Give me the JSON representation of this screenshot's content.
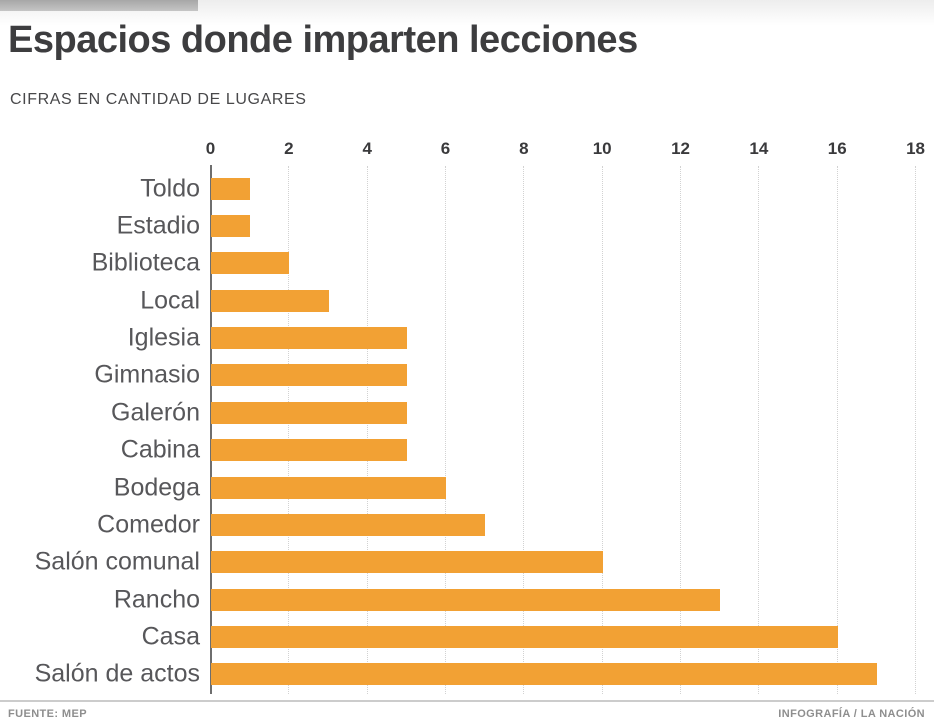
{
  "page": {
    "title": "Espacios donde imparten lecciones",
    "subtitle": "CIFRAS EN CANTIDAD DE LUGARES"
  },
  "footer": {
    "source": "FUENTE: MEP",
    "credit": "INFOGRAFÍA / LA NACIÓN"
  },
  "colors": {
    "bar": "#f2a134",
    "title_text": "#3d3d3f",
    "category_text": "#57575a",
    "axis_line": "#6e6e6e",
    "gridline": "#d2d2d2",
    "footer_text": "#8e8e8e",
    "top_strip": "#a7a7a7"
  },
  "chart_data": {
    "type": "bar",
    "orientation": "horizontal",
    "title": "Espacios donde imparten lecciones",
    "subtitle": "CIFRAS EN CANTIDAD DE LUGARES",
    "categories": [
      "Toldo",
      "Estadio",
      "Biblioteca",
      "Local",
      "Iglesia",
      "Gimnasio",
      "Galerón",
      "Cabina",
      "Bodega",
      "Comedor",
      "Salón comunal",
      "Rancho",
      "Casa",
      "Salón de actos"
    ],
    "values": [
      1,
      1,
      2,
      3,
      5,
      5,
      5,
      5,
      6,
      7,
      10,
      13,
      16,
      17
    ],
    "xlabel": "",
    "ylabel": "",
    "xlim": [
      0,
      18
    ],
    "xticks": [
      0,
      2,
      4,
      6,
      8,
      10,
      12,
      14,
      16,
      18
    ],
    "grid": "vertical-dotted",
    "legend": "none",
    "bar_color": "#f2a134"
  }
}
